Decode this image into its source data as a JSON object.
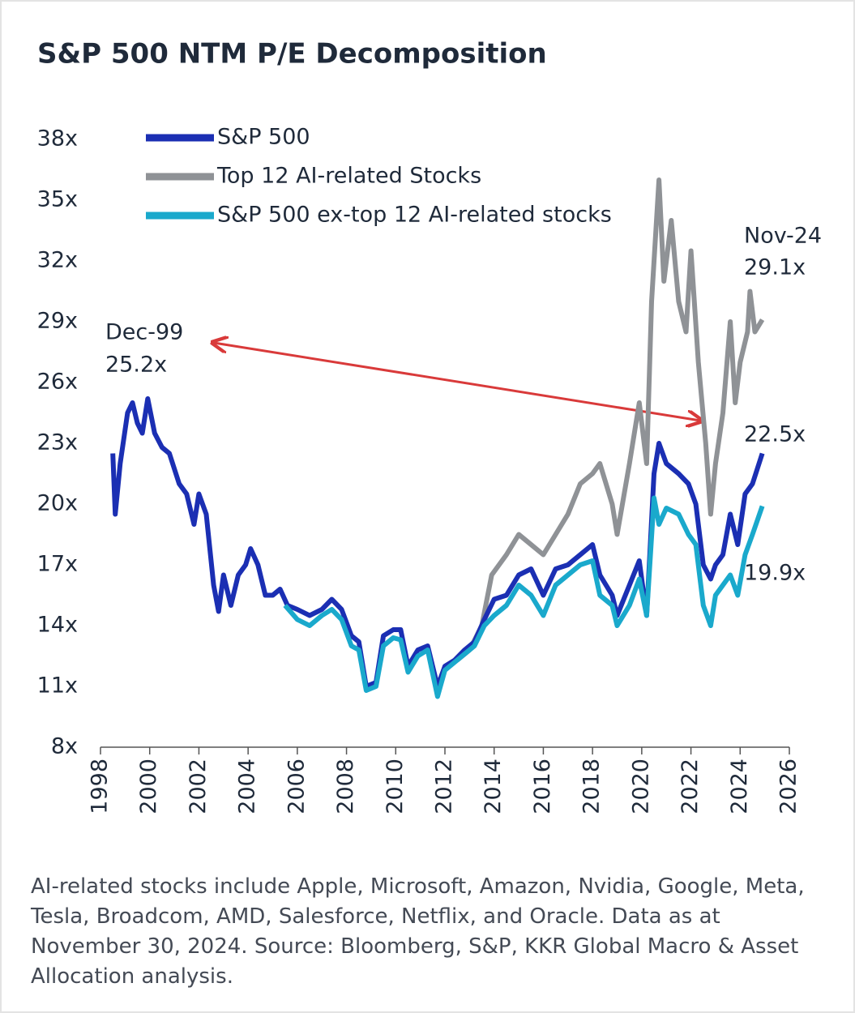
{
  "chart_data": {
    "type": "line",
    "title": "S&P 500 NTM P/E Decomposition",
    "xlim": [
      1998,
      2026
    ],
    "xticks": [
      1998,
      2000,
      2002,
      2004,
      2006,
      2008,
      2010,
      2012,
      2014,
      2016,
      2018,
      2020,
      2022,
      2024,
      2026
    ],
    "ylim": [
      8,
      38
    ],
    "yticks": [
      {
        "value": 8,
        "label": "8x"
      },
      {
        "value": 11,
        "label": "11x"
      },
      {
        "value": 14,
        "label": "14x"
      },
      {
        "value": 17,
        "label": "17x"
      },
      {
        "value": 20,
        "label": "20x"
      },
      {
        "value": 23,
        "label": "23x"
      },
      {
        "value": 26,
        "label": "26x"
      },
      {
        "value": 29,
        "label": "29x"
      },
      {
        "value": 32,
        "label": "32x"
      },
      {
        "value": 35,
        "label": "35x"
      },
      {
        "value": 38,
        "label": "38x"
      }
    ],
    "grid": false,
    "legend": "top-left",
    "series": [
      {
        "name": "S&P 500",
        "color": "#1b2fb3",
        "x": [
          1998.5,
          1998.6,
          1998.8,
          1999.1,
          1999.3,
          1999.5,
          1999.7,
          1999.92,
          2000.2,
          2000.5,
          2000.8,
          2001.2,
          2001.5,
          2001.8,
          2002.0,
          2002.3,
          2002.6,
          2002.8,
          2003.0,
          2003.3,
          2003.6,
          2003.9,
          2004.1,
          2004.4,
          2004.7,
          2005.0,
          2005.3,
          2005.6,
          2006.0,
          2006.5,
          2007.0,
          2007.4,
          2007.8,
          2008.2,
          2008.5,
          2008.8,
          2009.2,
          2009.5,
          2009.9,
          2010.2,
          2010.5,
          2010.9,
          2011.3,
          2011.7,
          2012.0,
          2012.4,
          2012.8,
          2013.2,
          2013.6,
          2014.0,
          2014.5,
          2015.0,
          2015.5,
          2016.0,
          2016.5,
          2017.0,
          2017.5,
          2018.0,
          2018.3,
          2018.8,
          2019.0,
          2019.5,
          2019.9,
          2020.2,
          2020.5,
          2020.7,
          2021.0,
          2021.5,
          2021.9,
          2022.2,
          2022.5,
          2022.8,
          2023.0,
          2023.3,
          2023.6,
          2023.9,
          2024.2,
          2024.5,
          2024.9
        ],
        "values": [
          22.5,
          19.5,
          22,
          24.5,
          25,
          24,
          23.5,
          25.2,
          23.5,
          22.8,
          22.5,
          21,
          20.5,
          19,
          20.5,
          19.5,
          16,
          14.7,
          16.5,
          15,
          16.5,
          17,
          17.8,
          17,
          15.5,
          15.5,
          15.8,
          15,
          14.8,
          14.5,
          14.8,
          15.3,
          14.8,
          13.5,
          13.2,
          11,
          11.2,
          13.5,
          13.8,
          13.8,
          12,
          12.8,
          13,
          11,
          12,
          12.3,
          12.8,
          13.2,
          14.3,
          15.3,
          15.5,
          16.5,
          16.8,
          15.5,
          16.8,
          17,
          17.5,
          18,
          16.5,
          15.5,
          14.5,
          16,
          17.2,
          14.5,
          21.5,
          23,
          22,
          21.5,
          21,
          20,
          17,
          16.3,
          17,
          17.5,
          19.5,
          18,
          20.5,
          21,
          22.5
        ]
      },
      {
        "name": "Top 12 AI-related Stocks",
        "color": "#8f9296",
        "x": [
          2012.5,
          2013.0,
          2013.5,
          2013.9,
          2014.5,
          2015.0,
          2015.5,
          2016.0,
          2016.5,
          2017.0,
          2017.5,
          2018.0,
          2018.3,
          2018.8,
          2019.0,
          2019.5,
          2019.9,
          2020.2,
          2020.4,
          2020.7,
          2020.9,
          2021.2,
          2021.5,
          2021.8,
          2022.0,
          2022.3,
          2022.6,
          2022.8,
          2023.0,
          2023.3,
          2023.6,
          2023.8,
          2024.0,
          2024.3,
          2024.4,
          2024.6,
          2024.9
        ],
        "values": [
          12.3,
          12.8,
          14,
          16.5,
          17.5,
          18.5,
          18,
          17.5,
          18.5,
          19.5,
          21,
          21.5,
          22,
          20,
          18.5,
          22,
          25,
          22,
          30,
          36,
          31,
          34,
          30,
          28.5,
          32.5,
          27,
          23,
          19.5,
          22,
          24.5,
          29,
          25,
          27,
          28.5,
          30.5,
          28.5,
          29.1
        ]
      },
      {
        "name": "S&P 500 ex-top 12 AI-related stocks",
        "color": "#1aa9cc",
        "x": [
          2005.5,
          2006.0,
          2006.5,
          2007.0,
          2007.4,
          2007.8,
          2008.2,
          2008.5,
          2008.8,
          2009.2,
          2009.5,
          2009.9,
          2010.2,
          2010.5,
          2010.9,
          2011.3,
          2011.7,
          2012.0,
          2012.4,
          2012.8,
          2013.2,
          2013.6,
          2014.0,
          2014.5,
          2015.0,
          2015.5,
          2016.0,
          2016.5,
          2017.0,
          2017.5,
          2018.0,
          2018.3,
          2018.8,
          2019.0,
          2019.5,
          2019.9,
          2020.2,
          2020.5,
          2020.7,
          2021.0,
          2021.5,
          2021.9,
          2022.2,
          2022.5,
          2022.8,
          2023.0,
          2023.3,
          2023.6,
          2023.9,
          2024.2,
          2024.5,
          2024.9
        ],
        "values": [
          15,
          14.3,
          14,
          14.5,
          14.8,
          14.3,
          13,
          12.8,
          10.8,
          11,
          13,
          13.4,
          13.3,
          11.7,
          12.5,
          12.8,
          10.5,
          11.8,
          12.2,
          12.6,
          13,
          14,
          14.5,
          15,
          16,
          15.5,
          14.5,
          16,
          16.5,
          17,
          17.2,
          15.5,
          15,
          14,
          15,
          16.3,
          14.5,
          20.3,
          19,
          19.8,
          19.5,
          18.5,
          18,
          15,
          14,
          15.5,
          16,
          16.5,
          15.5,
          17.5,
          18.5,
          19.9
        ]
      }
    ],
    "annotations": [
      "Dec-99",
      "25.2x",
      "Nov-24",
      "29.1x",
      "22.5x",
      "19.9x"
    ],
    "footnote": "AI-related stocks include Apple, Microsoft, Amazon, Nvidia, Google, Meta, Tesla, Broadcom, AMD, Salesforce, Netflix, and Oracle. Data as at November 30, 2024. Source: Bloomberg, S&P, KKR Global Macro & Asset Allocation analysis."
  }
}
